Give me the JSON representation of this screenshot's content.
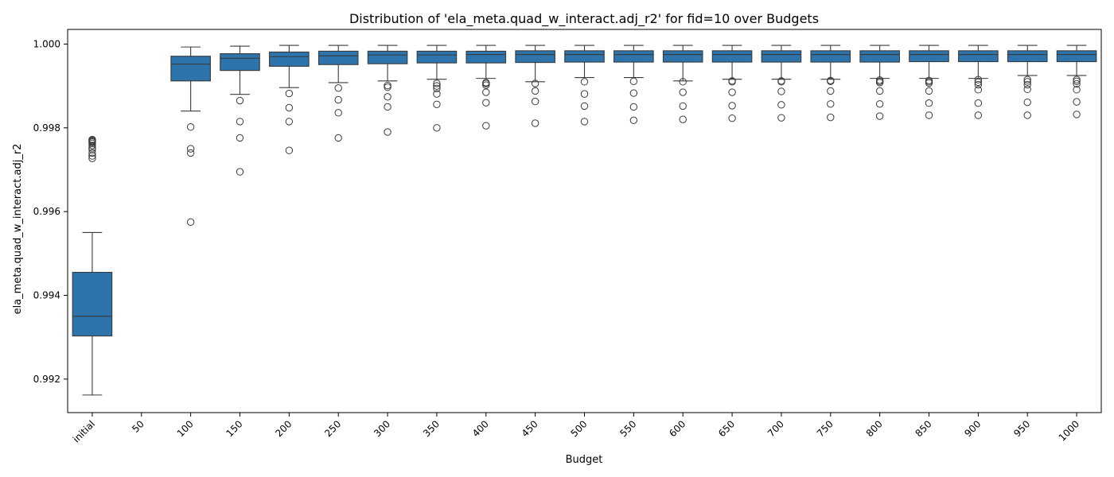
{
  "chart_data": {
    "type": "box",
    "title": "Distribution of 'ela_meta.quad_w_interact.adj_r2' for fid=10 over Budgets",
    "xlabel": "Budget",
    "ylabel": "ela_meta.quad_w_interact.adj_r2",
    "ylim": [
      0.9912,
      1.00035
    ],
    "yticks": [
      "0.992",
      "0.994",
      "0.996",
      "0.998",
      "1.000"
    ],
    "ytick_values": [
      0.992,
      0.994,
      0.996,
      0.998,
      1.0
    ],
    "categories": [
      "initial",
      "50",
      "100",
      "150",
      "200",
      "250",
      "300",
      "350",
      "400",
      "450",
      "500",
      "550",
      "600",
      "650",
      "700",
      "750",
      "800",
      "850",
      "900",
      "950",
      "1000"
    ],
    "box_color": "#2d74ad",
    "edge_color": "#3a3a3a",
    "boxes": [
      {
        "category": "initial",
        "whislo": 0.99162,
        "q1": 0.99303,
        "med": 0.9935,
        "q3": 0.99455,
        "whishi": 0.9955,
        "fliers": [
          0.99727,
          0.99733,
          0.9974,
          0.99748,
          0.99752,
          0.99758,
          0.99763,
          0.99768,
          0.99772,
          0.9977,
          0.99766
        ]
      },
      {
        "category": "50",
        "empty": true
      },
      {
        "category": "100",
        "whislo": 0.9984,
        "q1": 0.99912,
        "med": 0.99952,
        "q3": 0.99971,
        "whishi": 0.99993,
        "fliers": [
          0.99802,
          0.9975,
          0.9974,
          0.99575
        ]
      },
      {
        "category": "150",
        "whislo": 0.9988,
        "q1": 0.99937,
        "med": 0.99966,
        "q3": 0.99977,
        "whishi": 0.99995,
        "fliers": [
          0.99865,
          0.99815,
          0.99776,
          0.99695
        ]
      },
      {
        "category": "200",
        "whislo": 0.99896,
        "q1": 0.99947,
        "med": 0.9997,
        "q3": 0.99981,
        "whishi": 0.99997,
        "fliers": [
          0.99882,
          0.99848,
          0.99815,
          0.99746
        ]
      },
      {
        "category": "250",
        "whislo": 0.99908,
        "q1": 0.99951,
        "med": 0.99972,
        "q3": 0.99983,
        "whishi": 0.99997,
        "fliers": [
          0.99895,
          0.99867,
          0.99836,
          0.99776
        ]
      },
      {
        "category": "300",
        "whislo": 0.99912,
        "q1": 0.99953,
        "med": 0.99974,
        "q3": 0.99983,
        "whishi": 0.99997,
        "fliers": [
          0.99901,
          0.99897,
          0.99874,
          0.9985,
          0.9979
        ]
      },
      {
        "category": "350",
        "whislo": 0.99916,
        "q1": 0.99955,
        "med": 0.99974,
        "q3": 0.99983,
        "whishi": 0.99997,
        "fliers": [
          0.99906,
          0.999,
          0.99894,
          0.99881,
          0.99856,
          0.998
        ]
      },
      {
        "category": "400",
        "whislo": 0.99918,
        "q1": 0.99955,
        "med": 0.99975,
        "q3": 0.99983,
        "whishi": 0.99997,
        "fliers": [
          0.99908,
          0.99906,
          0.99902,
          0.99885,
          0.9986,
          0.99805
        ]
      },
      {
        "category": "450",
        "whislo": 0.9991,
        "q1": 0.99956,
        "med": 0.99975,
        "q3": 0.99984,
        "whishi": 0.99997,
        "fliers": [
          0.99906,
          0.99888,
          0.99863,
          0.99811
        ]
      },
      {
        "category": "500",
        "whislo": 0.9992,
        "q1": 0.99957,
        "med": 0.99975,
        "q3": 0.99984,
        "whishi": 0.99997,
        "fliers": [
          0.9991,
          0.99881,
          0.99852,
          0.99815
        ]
      },
      {
        "category": "550",
        "whislo": 0.9992,
        "q1": 0.99957,
        "med": 0.99975,
        "q3": 0.99984,
        "whishi": 0.99997,
        "fliers": [
          0.99911,
          0.99883,
          0.9985,
          0.99818
        ]
      },
      {
        "category": "600",
        "whislo": 0.99912,
        "q1": 0.99957,
        "med": 0.99975,
        "q3": 0.99984,
        "whishi": 0.99997,
        "fliers": [
          0.9991,
          0.99885,
          0.99852,
          0.9982
        ]
      },
      {
        "category": "650",
        "whislo": 0.99916,
        "q1": 0.99957,
        "med": 0.99975,
        "q3": 0.99984,
        "whishi": 0.99997,
        "fliers": [
          0.99912,
          0.9991,
          0.99885,
          0.99853,
          0.99823
        ]
      },
      {
        "category": "700",
        "whislo": 0.99916,
        "q1": 0.99957,
        "med": 0.99975,
        "q3": 0.99984,
        "whishi": 0.99997,
        "fliers": [
          0.99912,
          0.9991,
          0.99887,
          0.99855,
          0.99824
        ]
      },
      {
        "category": "750",
        "whislo": 0.99916,
        "q1": 0.99957,
        "med": 0.99975,
        "q3": 0.99984,
        "whishi": 0.99997,
        "fliers": [
          0.99913,
          0.99911,
          0.99888,
          0.99857,
          0.99825
        ]
      },
      {
        "category": "800",
        "whislo": 0.99918,
        "q1": 0.99957,
        "med": 0.99975,
        "q3": 0.99984,
        "whishi": 0.99997,
        "fliers": [
          0.99914,
          0.99911,
          0.99908,
          0.99888,
          0.99857,
          0.99828
        ]
      },
      {
        "category": "850",
        "whislo": 0.99918,
        "q1": 0.99958,
        "med": 0.99975,
        "q3": 0.99984,
        "whishi": 0.99997,
        "fliers": [
          0.99913,
          0.9991,
          0.99907,
          0.99888,
          0.99859,
          0.9983
        ]
      },
      {
        "category": "900",
        "whislo": 0.99918,
        "q1": 0.99958,
        "med": 0.99975,
        "q3": 0.99984,
        "whishi": 0.99997,
        "fliers": [
          0.99915,
          0.99909,
          0.99903,
          0.99891,
          0.99859,
          0.9983
        ]
      },
      {
        "category": "950",
        "whislo": 0.99925,
        "q1": 0.99958,
        "med": 0.99975,
        "q3": 0.99984,
        "whishi": 0.99997,
        "fliers": [
          0.99915,
          0.9991,
          0.99903,
          0.99892,
          0.99861,
          0.9983
        ]
      },
      {
        "category": "1000",
        "whislo": 0.99925,
        "q1": 0.99958,
        "med": 0.99975,
        "q3": 0.99984,
        "whishi": 0.99997,
        "fliers": [
          0.99915,
          0.99911,
          0.99905,
          0.99891,
          0.99862,
          0.99832
        ]
      }
    ]
  }
}
